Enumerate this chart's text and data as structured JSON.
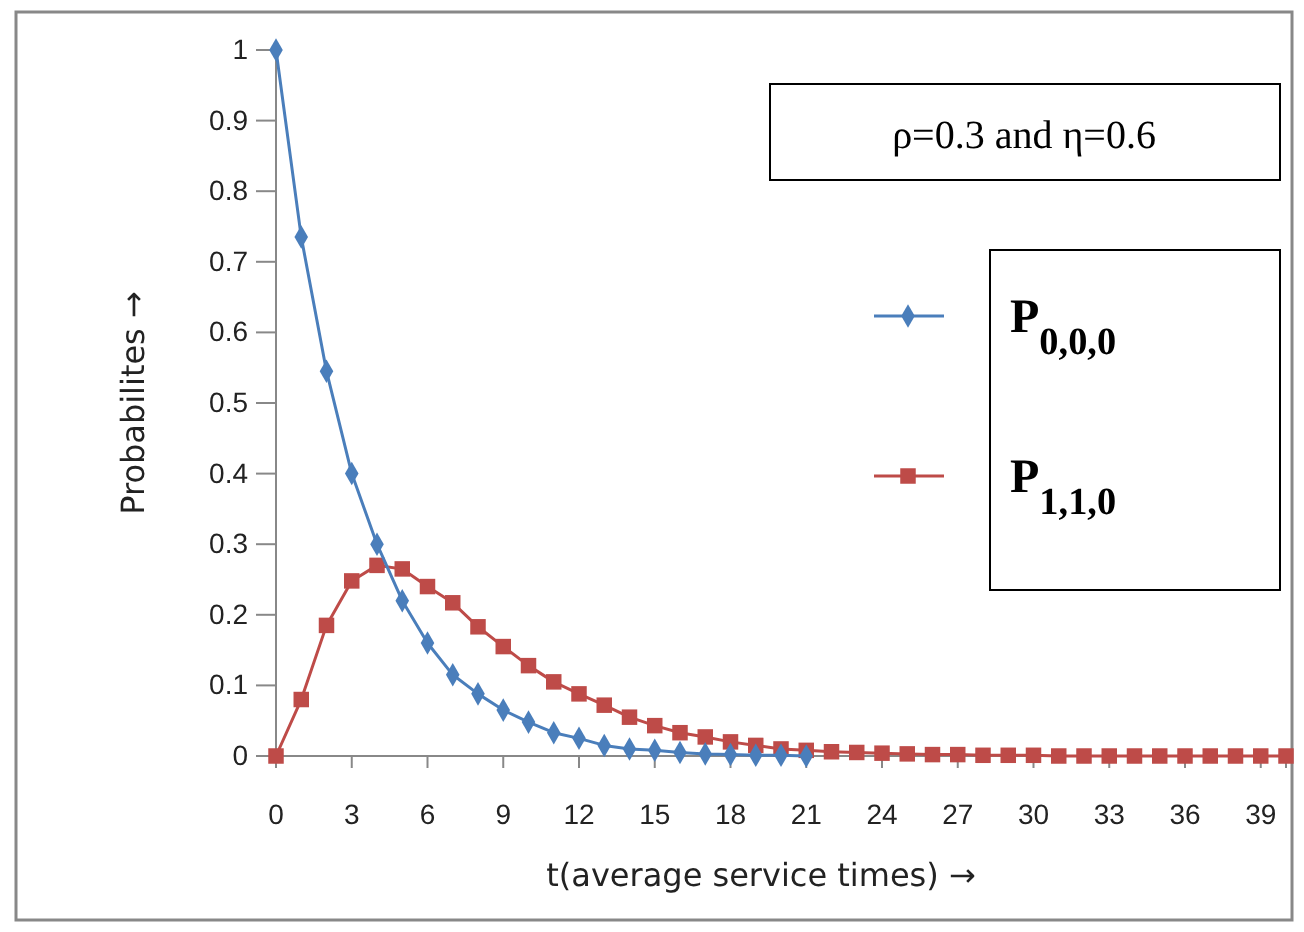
{
  "chart_data": {
    "type": "line",
    "xlabel": "t(average service times) →",
    "ylabel": "Probabilites →",
    "annotations": [
      "ρ=0.3 and η=0.6"
    ],
    "xlim": [
      0,
      40
    ],
    "xticks": [
      0,
      3,
      6,
      9,
      12,
      15,
      18,
      21,
      24,
      27,
      30,
      33,
      36,
      39
    ],
    "ylim": [
      0,
      1
    ],
    "yticks": [
      0,
      0.1,
      0.2,
      0.3,
      0.4,
      0.5,
      0.6,
      0.7,
      0.8,
      0.9,
      1
    ],
    "grid": false,
    "legend": "right",
    "line_style": "solid",
    "series": [
      {
        "name": "P$_{0,0,0}$",
        "color": "#4a7ebb",
        "marker": "diamond",
        "x": [
          0,
          1,
          2,
          3,
          4,
          5,
          6,
          7,
          8,
          9,
          10,
          11,
          12,
          13,
          14,
          15,
          16,
          17,
          18,
          19,
          20,
          21
        ],
        "values": [
          1,
          0.735,
          0.545,
          0.4,
          0.3,
          0.22,
          0.16,
          0.115,
          0.088,
          0.065,
          0.048,
          0.033,
          0.025,
          0.015,
          0.01,
          0.008,
          0.005,
          0.003,
          0.002,
          0.001,
          0.001,
          0
        ]
      },
      {
        "name": "P$_{1,1,0}$",
        "color": "#be4b48",
        "marker": "square",
        "x": [
          0,
          1,
          2,
          3,
          4,
          5,
          6,
          7,
          8,
          9,
          10,
          11,
          12,
          13,
          14,
          15,
          16,
          17,
          18,
          19,
          20,
          21,
          22,
          23,
          24,
          25,
          26,
          27,
          28,
          29,
          30,
          31,
          32,
          33,
          34,
          35,
          36,
          37,
          38,
          39,
          40
        ],
        "values": [
          0,
          0.08,
          0.185,
          0.248,
          0.27,
          0.265,
          0.24,
          0.217,
          0.183,
          0.155,
          0.128,
          0.105,
          0.088,
          0.072,
          0.055,
          0.043,
          0.033,
          0.027,
          0.02,
          0.015,
          0.01,
          0.008,
          0.006,
          0.005,
          0.004,
          0.003,
          0.002,
          0.002,
          0.001,
          0.001,
          0.001,
          0,
          0,
          0,
          0,
          0,
          0,
          0,
          0,
          0,
          0
        ]
      }
    ]
  }
}
